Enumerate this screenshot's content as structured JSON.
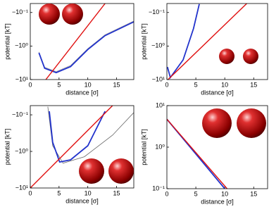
{
  "chart_data": [
    {
      "type": "line",
      "yscale": "log",
      "xlabel": "distance [σ]",
      "ylabel": "potential [kT]",
      "xlim": [
        0,
        18
      ],
      "xticks": [
        0,
        5,
        10,
        15
      ],
      "ylim": [
        -10,
        -0.054
      ],
      "yticks": [
        {
          "value": -10,
          "label": "−10¹"
        },
        {
          "value": -1,
          "label": "−10⁰"
        },
        {
          "value": -0.1,
          "label": "−10⁻¹"
        }
      ],
      "series": [
        {
          "color": "#999999",
          "x": [
            1.5,
            2.5,
            4.5,
            7,
            10,
            13,
            18
          ],
          "values": [
            -1.5,
            -4.3,
            -5.8,
            -3.8,
            -1.2,
            -0.46,
            -0.18
          ]
        },
        {
          "color": "#2233cc",
          "x": [
            1.5,
            2.5,
            4.5,
            7,
            10,
            13,
            18
          ],
          "values": [
            -1.6,
            -4.6,
            -6.2,
            -4.1,
            -1.27,
            -0.49,
            -0.19
          ]
        },
        {
          "color": "#e01010",
          "x": [
            2.7,
            13
          ],
          "values": [
            -10,
            -0.054
          ]
        }
      ]
    },
    {
      "type": "line",
      "yscale": "log",
      "xlabel": "distance [σ]",
      "ylabel": "potential [kT]",
      "xlim": [
        0,
        17.4
      ],
      "xticks": [
        0,
        5,
        10,
        15
      ],
      "ylim": [
        -10,
        -0.054
      ],
      "yticks": [
        {
          "value": -10,
          "label": "−10¹"
        },
        {
          "value": -1,
          "label": "−10⁰"
        },
        {
          "value": -0.1,
          "label": "−10⁻¹"
        }
      ],
      "series": [
        {
          "color": "#2233cc",
          "x": [
            0.1,
            0.6,
            2.8,
            4.6,
            5.6
          ],
          "values": [
            -4.2,
            -8.7,
            -2.6,
            -0.3,
            -0.056
          ]
        },
        {
          "color": "#e01010",
          "x": [
            0.2,
            13.8
          ],
          "values": [
            -10,
            -0.054
          ]
        }
      ]
    },
    {
      "type": "line",
      "yscale": "log",
      "xlabel": "distance [σ]",
      "ylabel": "potential [kT]",
      "xlim": [
        0,
        18
      ],
      "xticks": [
        0,
        5,
        10,
        15
      ],
      "ylim": [
        -10,
        -0.056
      ],
      "yticks": [
        {
          "value": -10,
          "label": "−10¹"
        },
        {
          "value": -1,
          "label": "−10⁰"
        },
        {
          "value": -0.1,
          "label": "−10⁻¹"
        }
      ],
      "series": [
        {
          "color": "#666666",
          "x": [
            3.05,
            3.9,
            5.7,
            9.4,
            14.3,
            18
          ],
          "values": [
            -0.06,
            -0.7,
            -2.1,
            -1.4,
            -0.36,
            -0.087
          ]
        },
        {
          "color": "#2233cc",
          "x": [
            3.3,
            3.9,
            5.1,
            7,
            10,
            13
          ],
          "values": [
            -0.08,
            -0.56,
            -1.95,
            -1.7,
            -0.7,
            -0.08
          ]
        },
        {
          "color": "#e01010",
          "x": [
            0,
            14.3
          ],
          "values": [
            -10,
            -0.056
          ]
        }
      ]
    },
    {
      "type": "line",
      "yscale": "log",
      "xlabel": "distance [σ]",
      "ylabel": "potential [kT]",
      "xlim": [
        0,
        17.4
      ],
      "xticks": [
        0,
        5,
        10,
        15
      ],
      "ylim": [
        0.1,
        10
      ],
      "yticks": [
        {
          "value": 0.1,
          "label": "10⁻¹"
        },
        {
          "value": 1,
          "label": "10⁰"
        },
        {
          "value": 10,
          "label": "10¹"
        }
      ],
      "series": [
        {
          "color": "#2233cc",
          "x": [
            0,
            10
          ],
          "values": [
            4.7,
            0.1
          ]
        },
        {
          "color": "#e01010",
          "x": [
            0,
            10.4
          ],
          "values": [
            4.7,
            0.1
          ]
        }
      ]
    }
  ]
}
